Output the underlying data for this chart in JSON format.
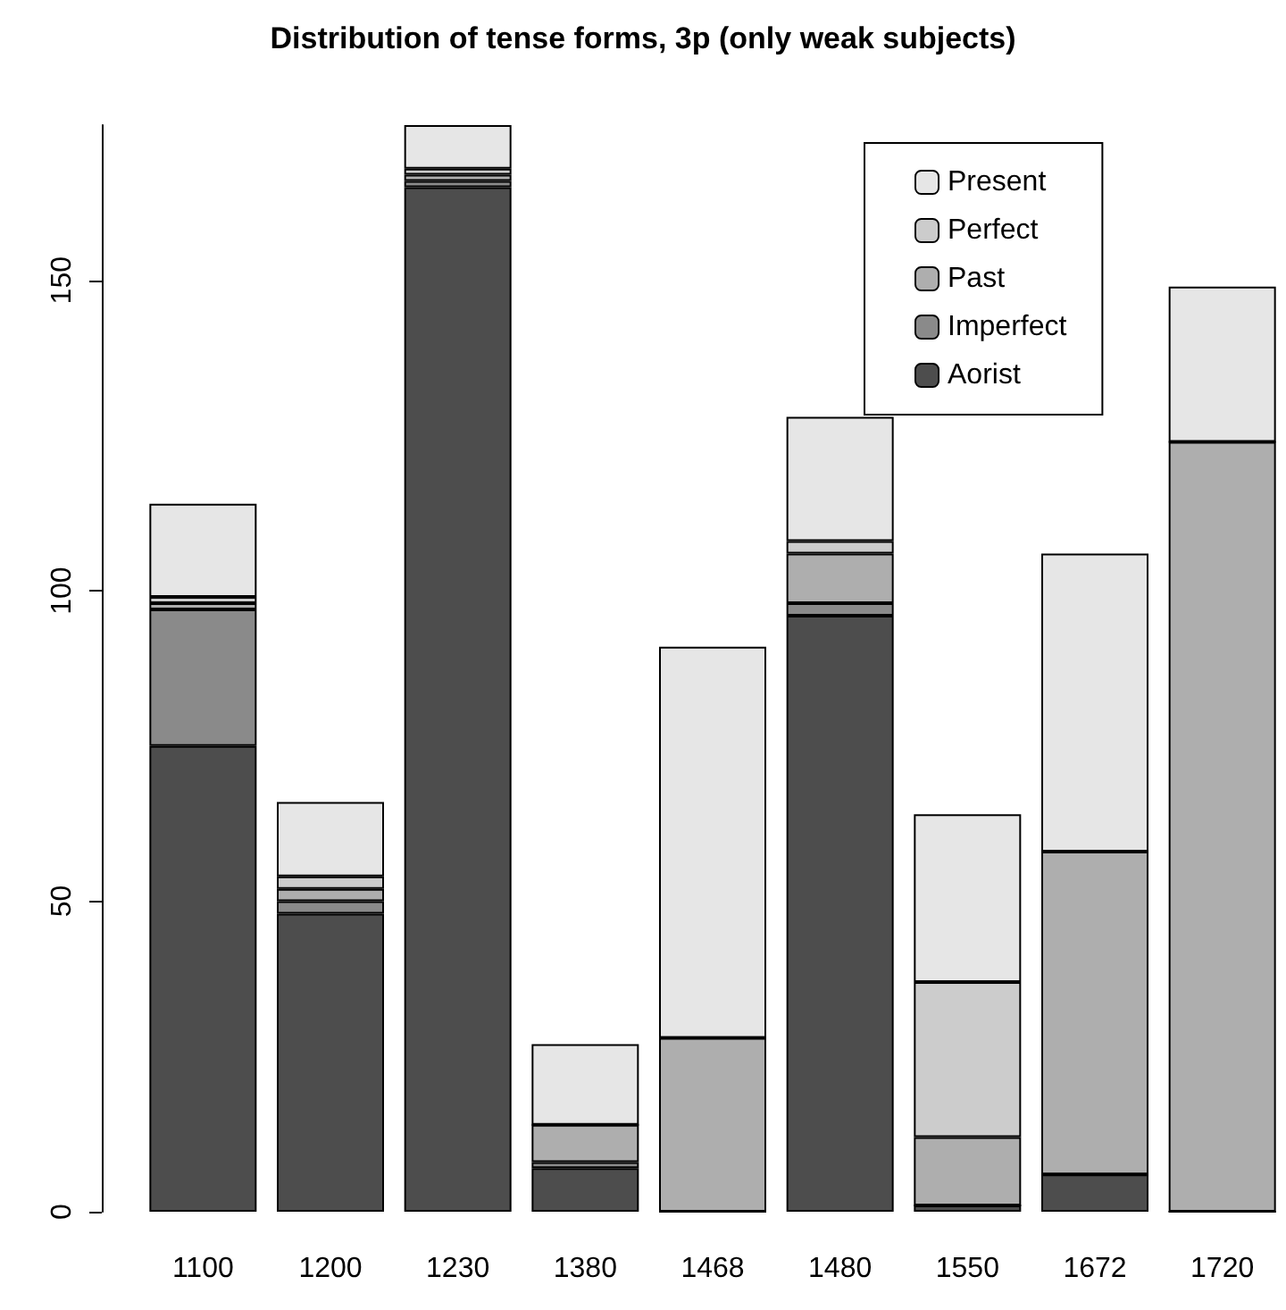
{
  "chart_data": {
    "type": "bar",
    "title": "Distribution of tense forms, 3p (only weak subjects)",
    "categories": [
      "1100",
      "1200",
      "1230",
      "1380",
      "1468",
      "1480",
      "1550",
      "1672",
      "1720"
    ],
    "stacked": true,
    "legend": "top right",
    "grid": false,
    "ylim": [
      0,
      175
    ],
    "yticks": [
      0,
      50,
      100,
      150
    ],
    "series": [
      {
        "name": "Aorist",
        "color": "#4d4d4d",
        "values": [
          75,
          48,
          165,
          7,
          0,
          96,
          1,
          6,
          0
        ]
      },
      {
        "name": "Imperfect",
        "color": "#8a8a8a",
        "values": [
          22,
          2,
          1,
          1,
          0,
          2,
          0,
          0,
          0
        ]
      },
      {
        "name": "Past",
        "color": "#aeaeae",
        "values": [
          1,
          2,
          1,
          6,
          28,
          8,
          11,
          52,
          124
        ]
      },
      {
        "name": "Perfect",
        "color": "#cccccc",
        "values": [
          1,
          2,
          1,
          0,
          0,
          2,
          25,
          0,
          0
        ]
      },
      {
        "name": "Present",
        "color": "#e6e6e6",
        "values": [
          15,
          12,
          7,
          13,
          63,
          20,
          27,
          48,
          25
        ]
      }
    ]
  }
}
